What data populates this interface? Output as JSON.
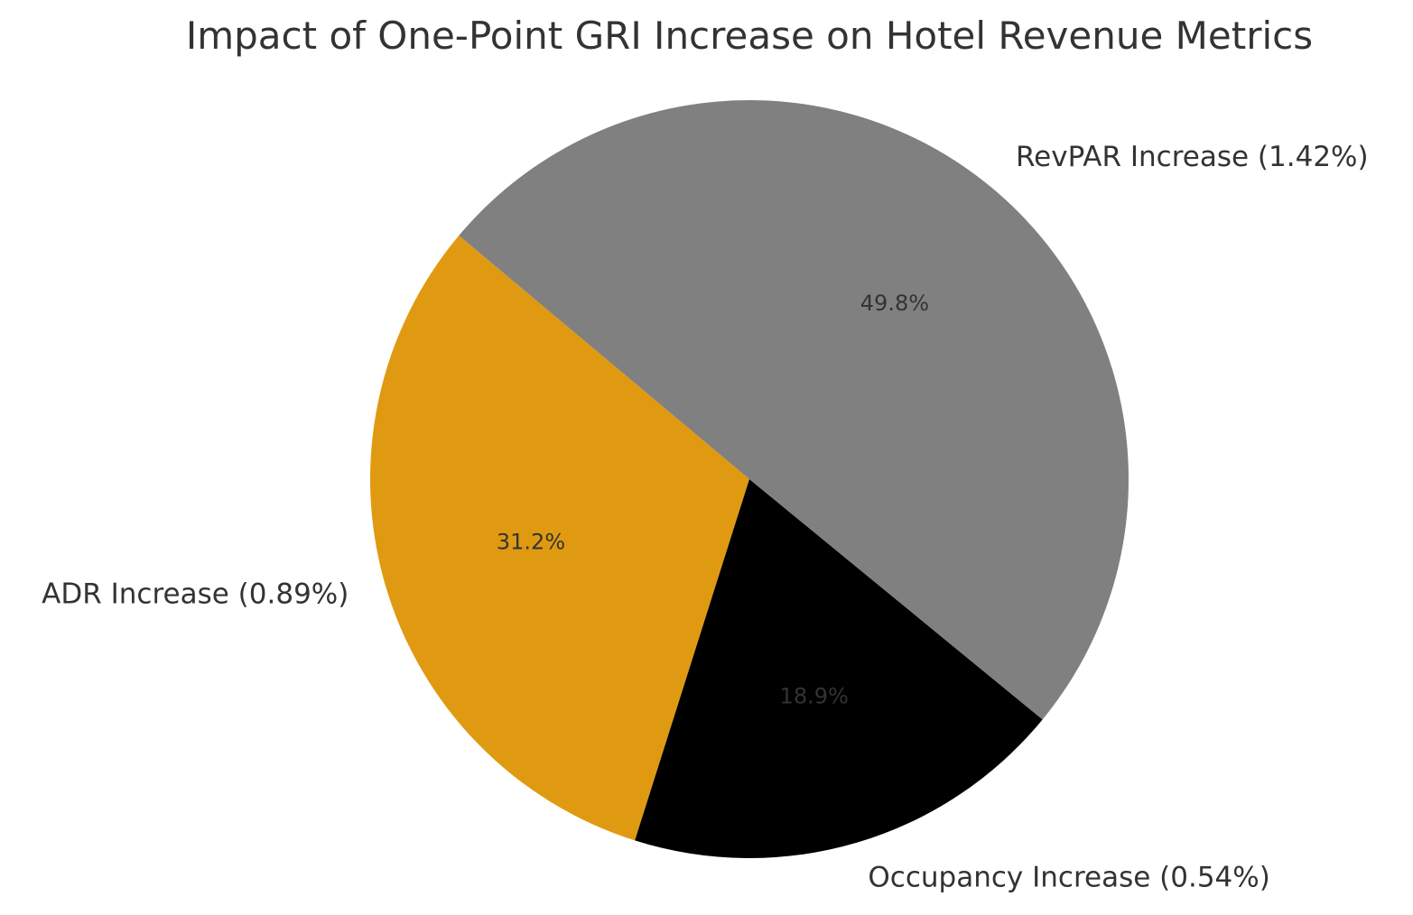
{
  "chart_data": {
    "type": "pie",
    "title": "Impact of One-Point GRI Increase on Hotel Revenue Metrics",
    "start_angle_deg": 140,
    "direction": "counterclockwise",
    "slices": [
      {
        "label": "ADR Increase (0.89%)",
        "value": 0.89,
        "pct_label": "31.2%",
        "color": "#E09A12"
      },
      {
        "label": "Occupancy Increase (0.54%)",
        "value": 0.54,
        "pct_label": "18.9%",
        "color": "#000000"
      },
      {
        "label": "RevPAR Increase (1.42%)",
        "value": 1.42,
        "pct_label": "49.8%",
        "color": "#808080"
      }
    ]
  }
}
